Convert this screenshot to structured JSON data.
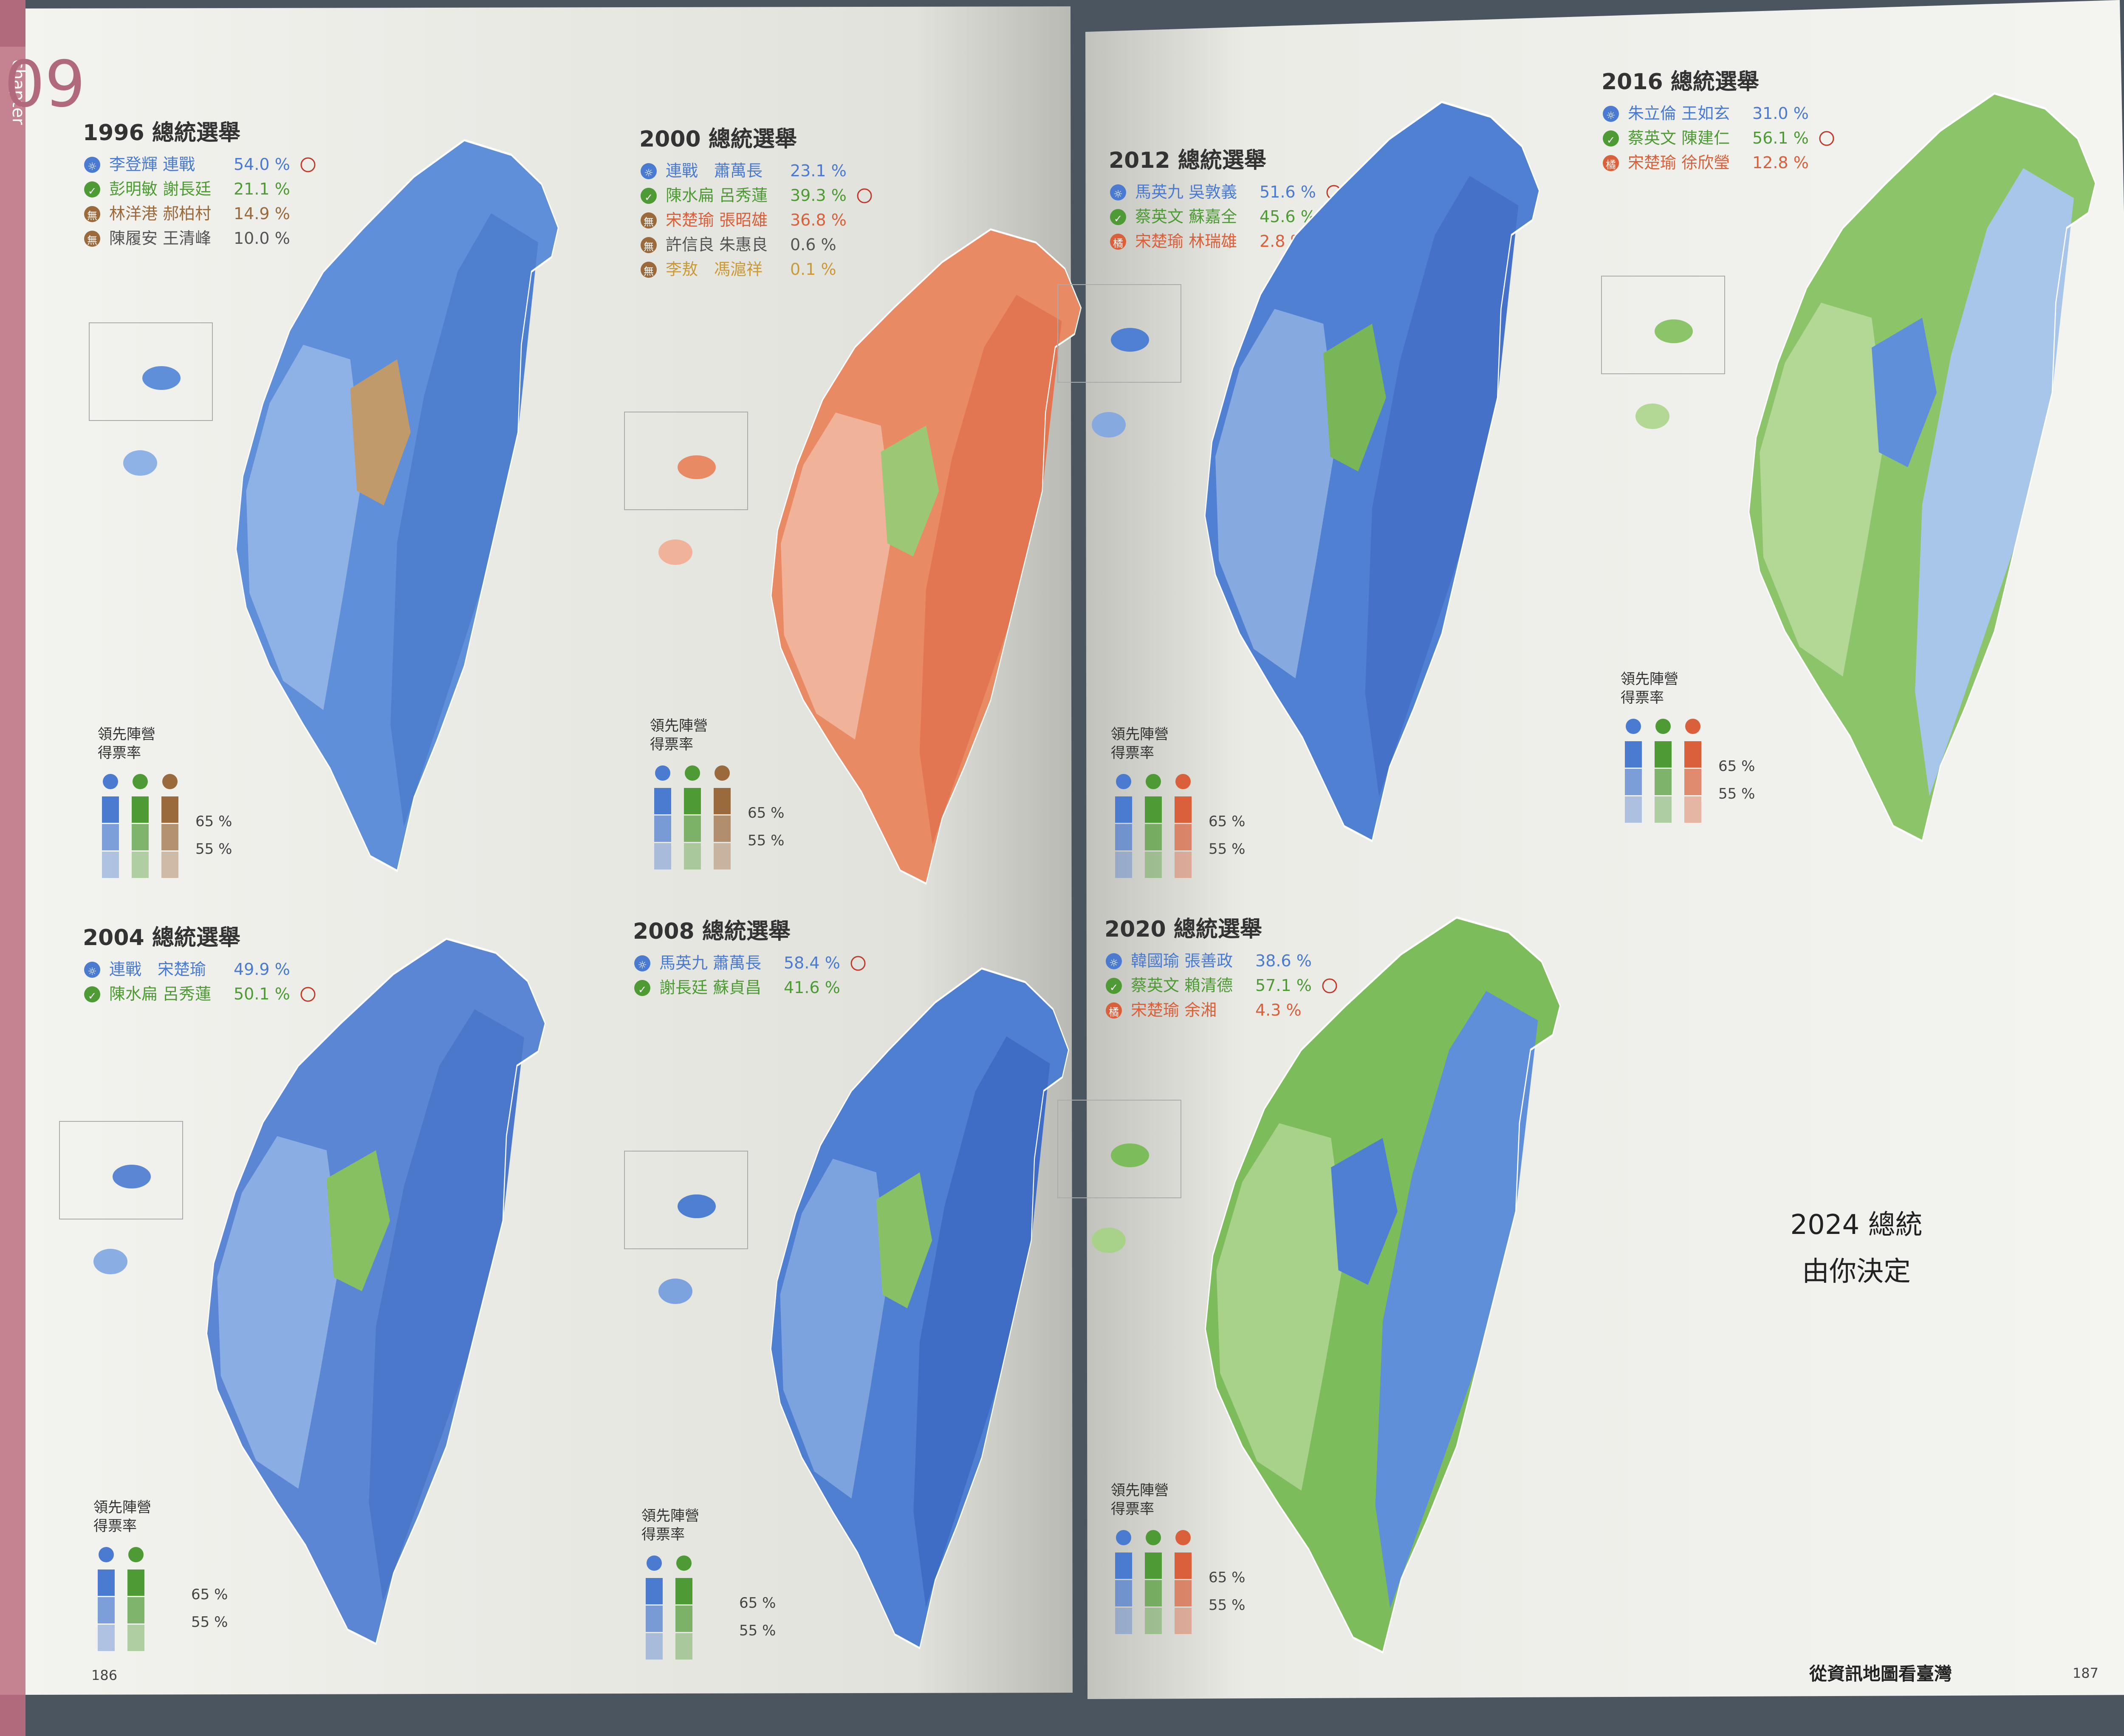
{
  "chapter": {
    "label": "chapter",
    "number": "09"
  },
  "colors": {
    "kmt_blue": "#5b8ad6",
    "dpp_green": "#7fbf56",
    "pfp_orange": "#e8825f",
    "indep_brown": "#b98b5a",
    "page": "#f5f5f2"
  },
  "maps": [
    {
      "id": "1996",
      "title": "1996 總統選舉",
      "candidates": [
        {
          "icon": "kmt-icon",
          "names": "李登輝 連戰",
          "pct": "54.0 %",
          "win": "true",
          "color": "#4a7bd0"
        },
        {
          "icon": "dpp-icon",
          "names": "彭明敏 謝長廷",
          "pct": "21.1 %",
          "win": "false",
          "color": "#4e9a35"
        },
        {
          "icon": "indep-icon",
          "names": "林洋港 郝柏村",
          "pct": "14.9 %",
          "win": "false",
          "color": "#9a6a3c"
        },
        {
          "icon": "indep-icon",
          "names": "陳履安 王清峰",
          "pct": "10.0 %",
          "win": "false",
          "color": "#555555"
        }
      ],
      "legend": {
        "label1": "領先陣營",
        "label2": "得票率",
        "pct_high": "65 %",
        "pct_low": "55 %"
      }
    },
    {
      "id": "2000",
      "title": "2000 總統選舉",
      "candidates": [
        {
          "icon": "kmt-icon",
          "names": "連戰　蕭萬長",
          "pct": "23.1 %",
          "win": "false",
          "color": "#4a7bd0"
        },
        {
          "icon": "dpp-icon",
          "names": "陳水扁 呂秀蓮",
          "pct": "39.3 %",
          "win": "true",
          "color": "#4e9a35"
        },
        {
          "icon": "indep-icon",
          "names": "宋楚瑜 張昭雄",
          "pct": "36.8 %",
          "win": "false",
          "color": "#d9603a"
        },
        {
          "icon": "indep-icon",
          "names": "許信良 朱惠良",
          "pct": "0.6 %",
          "win": "false",
          "color": "#555555"
        },
        {
          "icon": "indep-icon",
          "names": "李敖　馮滬祥",
          "pct": "0.1 %",
          "win": "false",
          "color": "#c99a3a"
        }
      ],
      "legend": {
        "label1": "領先陣營",
        "label2": "得票率",
        "pct_high": "65 %",
        "pct_low": "55 %"
      }
    },
    {
      "id": "2004",
      "title": "2004 總統選舉",
      "candidates": [
        {
          "icon": "kmt-icon",
          "names": "連戰　宋楚瑜",
          "pct": "49.9 %",
          "win": "false",
          "color": "#4a7bd0"
        },
        {
          "icon": "dpp-icon",
          "names": "陳水扁 呂秀蓮",
          "pct": "50.1 %",
          "win": "true",
          "color": "#4e9a35"
        }
      ],
      "legend": {
        "label1": "領先陣營",
        "label2": "得票率",
        "pct_high": "65 %",
        "pct_low": "55 %"
      }
    },
    {
      "id": "2008",
      "title": "2008 總統選舉",
      "candidates": [
        {
          "icon": "kmt-icon",
          "names": "馬英九 蕭萬長",
          "pct": "58.4 %",
          "win": "true",
          "color": "#4a7bd0"
        },
        {
          "icon": "dpp-icon",
          "names": "謝長廷 蘇貞昌",
          "pct": "41.6 %",
          "win": "false",
          "color": "#4e9a35"
        }
      ],
      "legend": {
        "label1": "領先陣營",
        "label2": "得票率",
        "pct_high": "65 %",
        "pct_low": "55 %"
      }
    },
    {
      "id": "2012",
      "title": "2012 總統選舉",
      "candidates": [
        {
          "icon": "kmt-icon",
          "names": "馬英九 吳敦義",
          "pct": "51.6 %",
          "win": "true",
          "color": "#4a7bd0"
        },
        {
          "icon": "dpp-icon",
          "names": "蔡英文 蘇嘉全",
          "pct": "45.6 %",
          "win": "false",
          "color": "#4e9a35"
        },
        {
          "icon": "pfp-icon",
          "names": "宋楚瑜 林瑞雄",
          "pct": "2.8 %",
          "win": "false",
          "color": "#d9603a"
        }
      ],
      "legend": {
        "label1": "領先陣營",
        "label2": "得票率",
        "pct_high": "65 %",
        "pct_low": "55 %"
      }
    },
    {
      "id": "2016",
      "title": "2016 總統選舉",
      "candidates": [
        {
          "icon": "kmt-icon",
          "names": "朱立倫 王如玄",
          "pct": "31.0 %",
          "win": "false",
          "color": "#4a7bd0"
        },
        {
          "icon": "dpp-icon",
          "names": "蔡英文 陳建仁",
          "pct": "56.1 %",
          "win": "true",
          "color": "#4e9a35"
        },
        {
          "icon": "pfp-icon",
          "names": "宋楚瑜 徐欣瑩",
          "pct": "12.8 %",
          "win": "false",
          "color": "#d9603a"
        }
      ],
      "legend": {
        "label1": "領先陣營",
        "label2": "得票率",
        "pct_high": "65 %",
        "pct_low": "55 %"
      }
    },
    {
      "id": "2020",
      "title": "2020 總統選舉",
      "candidates": [
        {
          "icon": "kmt-icon",
          "names": "韓國瑜 張善政",
          "pct": "38.6 %",
          "win": "false",
          "color": "#4a7bd0"
        },
        {
          "icon": "dpp-icon",
          "names": "蔡英文 賴清德",
          "pct": "57.1 %",
          "win": "true",
          "color": "#4e9a35"
        },
        {
          "icon": "pfp-icon",
          "names": "宋楚瑜 余湘",
          "pct": "4.3 %",
          "win": "false",
          "color": "#d9603a"
        }
      ],
      "legend": {
        "label1": "領先陣營",
        "label2": "得票率",
        "pct_high": "65 %",
        "pct_low": "55 %"
      }
    }
  ],
  "center_note": {
    "line1": "2024 總統",
    "line2": "由你決定"
  },
  "footer": {
    "left_page": "186",
    "right_page": "187",
    "book_title": "從資訊地圖看臺灣"
  }
}
